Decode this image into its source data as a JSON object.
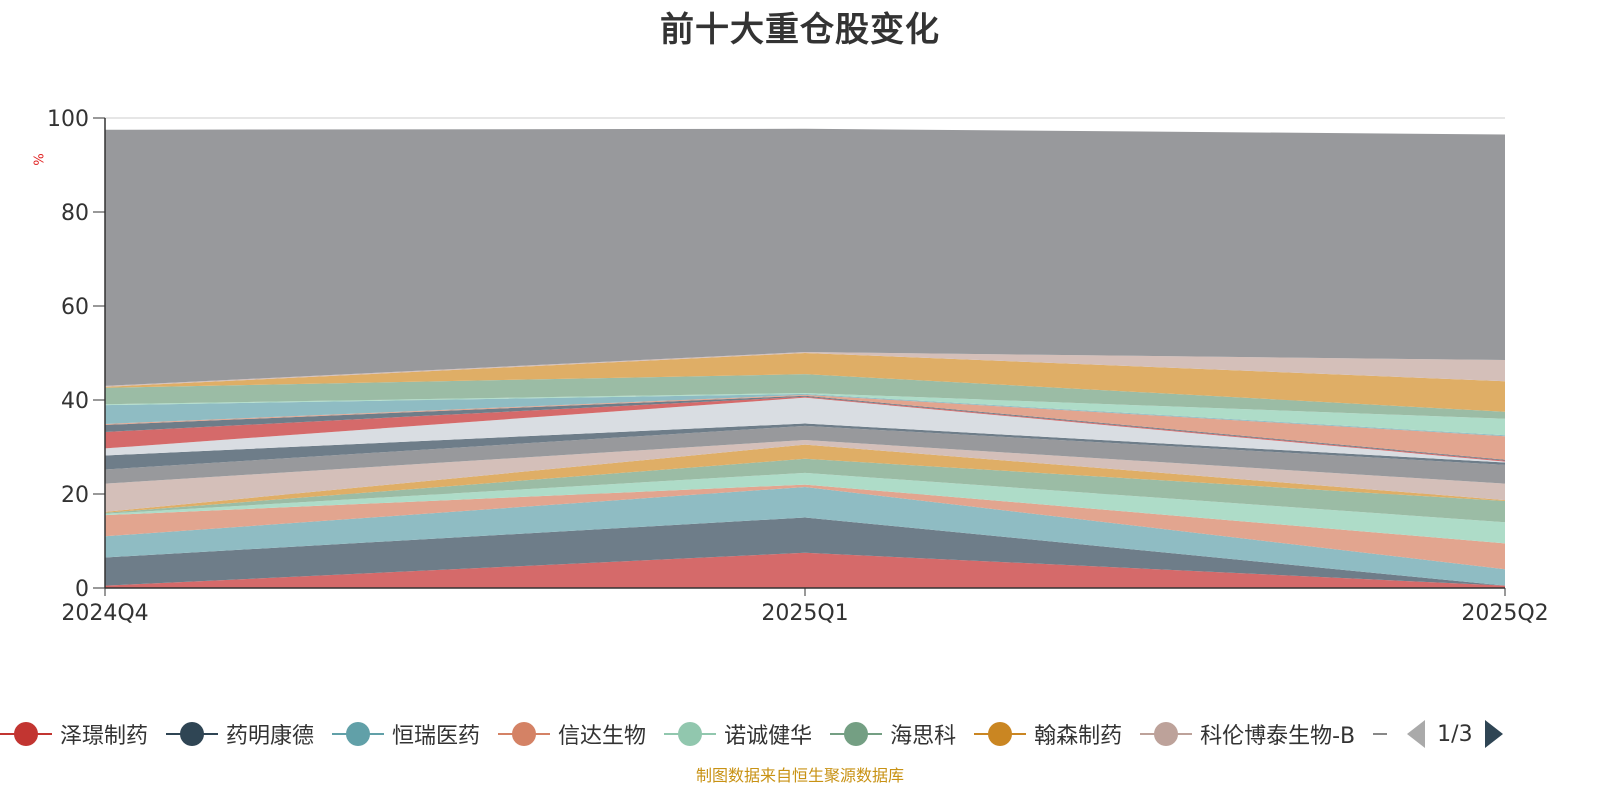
{
  "chart_data": {
    "type": "area",
    "stacked": true,
    "title": "前十大重仓股变化",
    "ylabel": "%",
    "ylim": [
      0,
      100
    ],
    "yticks": [
      0,
      20,
      40,
      60,
      80,
      100
    ],
    "categories": [
      "2024Q4",
      "2025Q1",
      "2025Q2"
    ],
    "series": [
      {
        "name": "泽璟制药",
        "color": "#d56a6a",
        "values": [
          0.5,
          7.5,
          0.5
        ]
      },
      {
        "name": "药明康德",
        "color": "#6e7d89",
        "values": [
          6.0,
          7.5,
          0.0
        ]
      },
      {
        "name": "恒瑞医药",
        "color": "#8fbcc3",
        "values": [
          4.5,
          6.5,
          3.5
        ]
      },
      {
        "name": "信达生物",
        "color": "#e2a58f",
        "values": [
          4.5,
          0.5,
          5.5
        ]
      },
      {
        "name": "诺诚健华",
        "color": "#aedcc8",
        "values": [
          0.3,
          2.5,
          4.5
        ]
      },
      {
        "name": "海思科",
        "color": "#9bbca5",
        "values": [
          0.2,
          3.0,
          4.5
        ]
      },
      {
        "name": "翰森制药",
        "color": "#dfae66",
        "values": [
          0.2,
          3.0,
          0.2
        ]
      },
      {
        "name": "科伦博泰生物-B",
        "color": "#d4bfb9",
        "values": [
          6.0,
          1.0,
          3.5
        ]
      },
      {
        "name": "",
        "color": "#98999c",
        "values": [
          3.0,
          3.0,
          4.0
        ]
      },
      {
        "name": "",
        "color": "#6e7d89",
        "values": [
          3.0,
          0.5,
          0.5
        ]
      },
      {
        "name": "",
        "color": "#d9dde2",
        "values": [
          1.5,
          5.5,
          0.2
        ]
      },
      {
        "name": "",
        "color": "#d56a6a",
        "values": [
          3.5,
          0.2,
          0.2
        ]
      },
      {
        "name": "",
        "color": "#6e7d89",
        "values": [
          1.5,
          0.2,
          0.2
        ]
      },
      {
        "name": "",
        "color": "#e2a58f",
        "values": [
          0.2,
          0.2,
          5.0
        ]
      },
      {
        "name": "",
        "color": "#8fbcc3",
        "values": [
          4.0,
          0.2,
          0.2
        ]
      },
      {
        "name": "",
        "color": "#aedcc8",
        "values": [
          0.2,
          0.2,
          3.5
        ]
      },
      {
        "name": "",
        "color": "#9bbca5",
        "values": [
          3.5,
          4.0,
          1.5
        ]
      },
      {
        "name": "",
        "color": "#dfae66",
        "values": [
          0.2,
          4.5,
          6.5
        ]
      },
      {
        "name": "",
        "color": "#d4bfb9",
        "values": [
          0.2,
          0.2,
          4.5
        ]
      },
      {
        "name": "",
        "color": "#98999c",
        "values": [
          54.5,
          47.5,
          48.0
        ]
      }
    ]
  },
  "legend": {
    "items": [
      {
        "label": "泽璟制药",
        "color": "#c23531"
      },
      {
        "label": "药明康德",
        "color": "#2f4554"
      },
      {
        "label": "恒瑞医药",
        "color": "#61a0a8"
      },
      {
        "label": "信达生物",
        "color": "#d48265"
      },
      {
        "label": "诺诚健华",
        "color": "#91c7ae"
      },
      {
        "label": "海思科",
        "color": "#749f83"
      },
      {
        "label": "翰森制药",
        "color": "#ca8622"
      },
      {
        "label": "科伦博泰生物-B",
        "color": "#bda29a"
      }
    ],
    "page": "1/3"
  },
  "source": "制图数据来自恒生聚源数据库"
}
